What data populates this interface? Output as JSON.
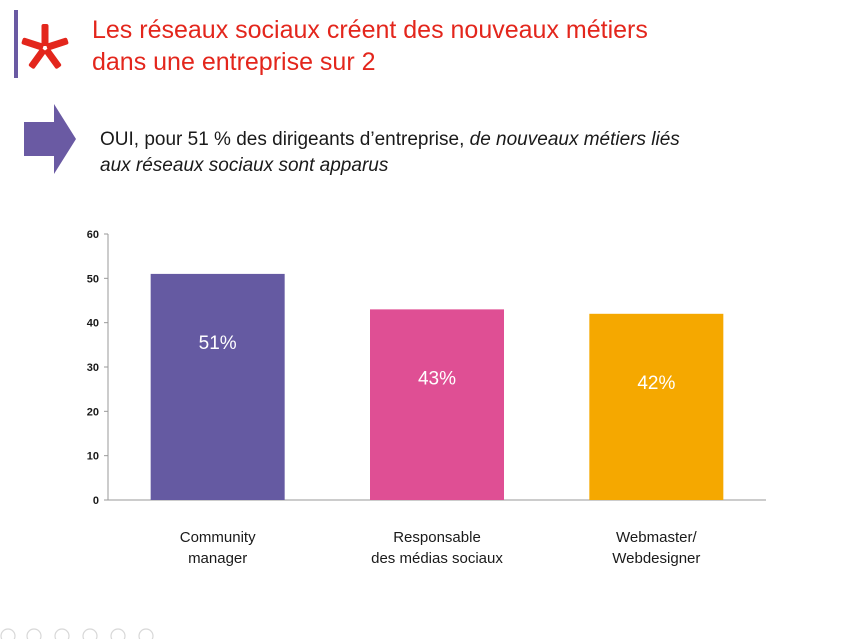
{
  "slide": {
    "title_line1": "Les réseaux sociaux créent des nouveaux métiers",
    "title_line2": "dans une entreprise sur 2",
    "subtitle_plain": "OUI, pour 51 % des dirigeants d’entreprise,",
    "subtitle_italic_1": "de nouveaux métiers liés",
    "subtitle_italic_2": "aux réseaux sociaux sont apparus"
  },
  "colors": {
    "title": "#e3261c",
    "arrow": "#6a5aa3",
    "logo_bar": "#6a5aa3",
    "logo_star": "#e3261c"
  },
  "chart_data": {
    "type": "bar",
    "categories": [
      [
        "Community",
        "manager"
      ],
      [
        "Responsable",
        "des médias sociaux"
      ],
      [
        "Webmaster/",
        "Webdesigner"
      ]
    ],
    "values": [
      51,
      43,
      42
    ],
    "data_labels": [
      "51%",
      "43%",
      "42%"
    ],
    "colors": [
      "#655aa2",
      "#df4f94",
      "#f5a800"
    ],
    "ylim": [
      0,
      60
    ],
    "yticks": [
      0,
      10,
      20,
      30,
      40,
      50,
      60
    ],
    "grid": false,
    "legend": "none"
  }
}
